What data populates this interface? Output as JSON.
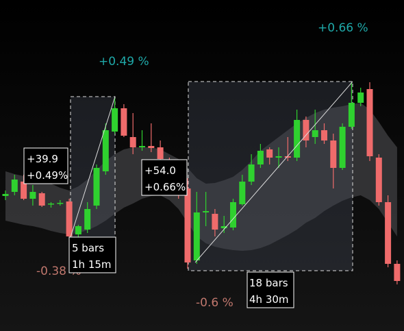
{
  "chart_data": {
    "type": "candlestick",
    "open": [
      8154.8,
      8156,
      8159,
      8154,
      8155.6,
      8152.4,
      8152.6,
      8153.2,
      8143.6,
      8145,
      8152,
      8162,
      8173.6,
      8180.4,
      8172,
      8169,
      8169.4,
      8169,
      8165,
      8159,
      8157,
      8136,
      8150,
      8149.6,
      8145.4,
      8145.6,
      8152.4,
      8159,
      8164,
      8168.4,
      8166,
      8166.4,
      8166,
      8177,
      8172,
      8174,
      8171,
      8163,
      8175,
      8182,
      8186,
      8166,
      8153,
      8135
    ],
    "high": [
      8156.4,
      8161,
      8161,
      8158,
      8156,
      8153,
      8153.6,
      8154,
      8146.4,
      8153,
      8164,
      8176,
      8183.6,
      8181.6,
      8179,
      8174,
      8176,
      8171,
      8166,
      8161,
      8160,
      8156,
      8156,
      8151,
      8149,
      8154,
      8161,
      8167,
      8170,
      8169,
      8169,
      8172,
      8180,
      8178,
      8180,
      8176,
      8173,
      8176,
      8188,
      8186.4,
      8188,
      8167,
      8155,
      8136
    ],
    "low": [
      8153.6,
      8155,
      8153.6,
      8152,
      8151.6,
      8151.4,
      8152,
      8142.4,
      8142.8,
      8144,
      8151,
      8161,
      8173,
      8172,
      8167,
      8168,
      8167.6,
      8164,
      8157,
      8154,
      8133.6,
      8135,
      8146,
      8143,
      8144,
      8144.8,
      8152,
      8158,
      8163,
      8164,
      8163,
      8165,
      8165,
      8169,
      8170,
      8170,
      8157,
      8162.4,
      8174.4,
      8181,
      8165,
      8152,
      8134,
      8129
    ],
    "close": [
      8155.4,
      8159.6,
      8154,
      8156,
      8152,
      8152.6,
      8152.8,
      8143,
      8146,
      8151,
      8163,
      8174,
      8180.4,
      8172.4,
      8169,
      8169.4,
      8168.8,
      8165.6,
      8159,
      8157,
      8135.4,
      8150,
      8150.4,
      8145,
      8146,
      8153,
      8159,
      8164,
      8168,
      8166,
      8166.4,
      8166,
      8177,
      8171,
      8174,
      8171,
      8163,
      8175,
      8182,
      8185,
      8166.4,
      8153,
      8135,
      8130
    ],
    "envelope": {
      "upper": [
        8162,
        8161.2,
        8160.6,
        8160,
        8159.4,
        8158.4,
        8157.2,
        8156.4,
        8157.6,
        8159.6,
        8162.4,
        8165,
        8167,
        8168.4,
        8169,
        8169,
        8169,
        8168.4,
        8167,
        8165.6,
        8163,
        8160,
        8158.4,
        8158.6,
        8159.4,
        8160.4,
        8162.4,
        8165,
        8168,
        8170,
        8172,
        8174,
        8176,
        8177.6,
        8179,
        8180,
        8180.6,
        8181,
        8181.6,
        8182,
        8180,
        8176.4,
        8172.4,
        8169
      ],
      "lower": [
        8147.6,
        8147,
        8146.4,
        8146,
        8145.4,
        8144.6,
        8144,
        8143.6,
        8144,
        8144.8,
        8146,
        8147.6,
        8149.6,
        8151.4,
        8152.6,
        8154,
        8154.8,
        8155,
        8153.6,
        8151,
        8147,
        8143,
        8141,
        8140,
        8139.4,
        8139,
        8138.8,
        8139,
        8139.6,
        8140.6,
        8142,
        8143.4,
        8145,
        8147,
        8148.4,
        8150.4,
        8152,
        8153.4,
        8154.4,
        8155,
        8153.6,
        8151,
        8147,
        8143
      ],
      "color": "#3a3a3c"
    },
    "up_color": "#2fd12f",
    "down_color": "#ef6b6b",
    "ylim": [
      8115.4,
      8212
    ],
    "annotations": {
      "move_up_pct_1": "+0.49 %",
      "move_up_pct_2": "+0.66 %",
      "move_down_pct_1": "-0.38 %",
      "move_down_pct_2": "-0.6 %",
      "box_1": [
        "+39.9",
        "+0.49%"
      ],
      "box_2": [
        "5 bars",
        "1h 15m"
      ],
      "box_3": [
        "+54.0",
        "+0.66%"
      ],
      "box_4": [
        "18 bars",
        "4h 30m"
      ]
    }
  }
}
